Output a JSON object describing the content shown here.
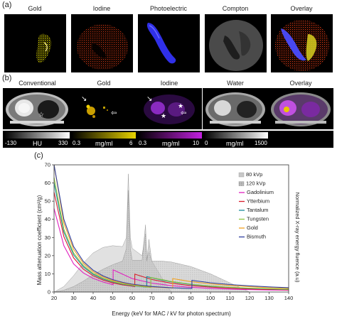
{
  "panel_a": {
    "letter": "(a)",
    "titles": [
      "Gold",
      "Iodine",
      "Photoelectric",
      "Compton",
      "Overlay"
    ]
  },
  "panel_b": {
    "letter": "(b)",
    "titles": [
      "Conventional",
      "Gold",
      "Iodine",
      "Water",
      "Overlay"
    ],
    "colorbars": [
      {
        "min": "-130",
        "unit": "HU",
        "max": "330",
        "gradient": [
          "#000000",
          "#ffffff"
        ]
      },
      {
        "min": "0.3",
        "unit": "mg/ml",
        "max": "6",
        "gradient": [
          "#000000",
          "#e8d400"
        ]
      },
      {
        "min": "0.3",
        "unit": "mg/ml",
        "max": "10",
        "gradient": [
          "#000000",
          "#c21fe0"
        ]
      },
      {
        "min": "0",
        "unit": "mg/ml",
        "max": "1500",
        "gradient": [
          "#000000",
          "#ffffff"
        ]
      }
    ]
  },
  "panel_c": {
    "letter": "(c)"
  },
  "chart_data": {
    "type": "line",
    "xlabel": "Energy (keV for MAC / kV for photon spectrum)",
    "ylabel": "Mass attenuation coefficient (cm²/g)",
    "ylabel_right": "Normalized X-ray energy fluence (a.u)",
    "xlim": [
      20,
      140
    ],
    "ylim": [
      0,
      70
    ],
    "x_ticks": [
      20,
      30,
      40,
      50,
      60,
      70,
      80,
      90,
      100,
      110,
      120,
      130,
      140
    ],
    "y_ticks": [
      0,
      10,
      20,
      30,
      40,
      50,
      60,
      70
    ],
    "legend_position": "top-right",
    "spectra": [
      {
        "name": "80 kVp",
        "color": "#c8c8c8",
        "x": [
          20,
          25,
          30,
          35,
          40,
          45,
          50,
          55,
          57,
          58,
          59,
          60,
          65,
          66.8,
          67.5,
          68.5,
          70,
          75,
          80
        ],
        "y": [
          0,
          3,
          9,
          16,
          21.5,
          24.5,
          25.5,
          25,
          30,
          65,
          30,
          24,
          20,
          32,
          18,
          22,
          17,
          8,
          0
        ]
      },
      {
        "name": "120 kVp",
        "color": "#a8a8a8",
        "x": [
          20,
          25,
          30,
          35,
          40,
          45,
          50,
          55,
          57,
          58,
          59,
          60,
          65,
          66.8,
          67.5,
          68.5,
          70,
          75,
          80,
          90,
          100,
          110,
          120
        ],
        "y": [
          0,
          1,
          3,
          6,
          9.5,
          12.5,
          15,
          17,
          24,
          56,
          24,
          17.5,
          17.5,
          37,
          17,
          29,
          17,
          17,
          16.5,
          14,
          10,
          5,
          0
        ]
      }
    ],
    "series": [
      {
        "name": "Gadolinium",
        "color": "#e020c0",
        "edge": 50.2,
        "x": [
          20,
          25,
          30,
          35,
          40,
          45,
          50.2,
          50.2,
          60,
          70,
          80,
          90,
          100,
          110,
          120,
          130,
          140
        ],
        "y": [
          46,
          25.5,
          15.5,
          10.5,
          7.5,
          5.5,
          4.0,
          12.2,
          7.4,
          4.9,
          3.5,
          2.6,
          2.0,
          1.6,
          1.3,
          1.1,
          1.0
        ]
      },
      {
        "name": "Ytterbium",
        "color": "#d81c2a",
        "edge": 61.3,
        "x": [
          20,
          25,
          30,
          35,
          40,
          45,
          50,
          55,
          61.3,
          61.3,
          70,
          80,
          90,
          100,
          110,
          120,
          130,
          140
        ],
        "y": [
          55,
          30.5,
          18.8,
          12.6,
          8.9,
          6.6,
          5.0,
          3.9,
          3.0,
          9.8,
          6.9,
          4.8,
          3.5,
          2.7,
          2.1,
          1.7,
          1.4,
          1.2
        ]
      },
      {
        "name": "Tantalum",
        "color": "#1a8a9a",
        "edge": 67.4,
        "x": [
          20,
          25,
          30,
          35,
          40,
          45,
          50,
          55,
          60,
          67.4,
          67.4,
          75,
          80,
          90,
          100,
          110,
          120,
          130,
          140
        ],
        "y": [
          60,
          33,
          20.5,
          13.8,
          9.7,
          7.2,
          5.5,
          4.3,
          3.5,
          2.7,
          8.5,
          6.6,
          5.6,
          4.1,
          3.1,
          2.5,
          2.0,
          1.7,
          1.4
        ]
      },
      {
        "name": "Tungsten",
        "color": "#8cc63e",
        "edge": 69.5,
        "x": [
          20,
          25,
          30,
          35,
          40,
          45,
          50,
          55,
          60,
          69.5,
          69.5,
          75,
          80,
          90,
          100,
          110,
          120,
          130,
          140
        ],
        "y": [
          63,
          34.5,
          21.5,
          14.5,
          10.2,
          7.5,
          5.8,
          4.5,
          3.7,
          2.5,
          8.0,
          6.9,
          5.8,
          4.3,
          3.3,
          2.6,
          2.1,
          1.8,
          1.5
        ]
      },
      {
        "name": "Gold",
        "color": "#f0a020",
        "edge": 80.7,
        "x": [
          20,
          25,
          30,
          35,
          40,
          45,
          50,
          55,
          60,
          70,
          80.7,
          80.7,
          90,
          100,
          110,
          120,
          130,
          140
        ],
        "y": [
          70,
          38,
          23.5,
          15.8,
          11.2,
          8.3,
          6.3,
          5.0,
          4.0,
          2.8,
          2.2,
          7.4,
          5.7,
          4.5,
          3.6,
          2.9,
          2.4,
          2.0
        ]
      },
      {
        "name": "Bismuth",
        "color": "#3040a0",
        "edge": 90.5,
        "x": [
          20,
          25,
          30,
          35,
          40,
          45,
          50,
          55,
          60,
          70,
          80,
          90.5,
          90.5,
          100,
          110,
          120,
          130,
          140
        ],
        "y": [
          72,
          40,
          25,
          16.8,
          12.0,
          8.9,
          6.8,
          5.3,
          4.3,
          3.0,
          2.3,
          1.9,
          6.4,
          5.1,
          4.1,
          3.4,
          2.8,
          2.4
        ]
      }
    ]
  }
}
